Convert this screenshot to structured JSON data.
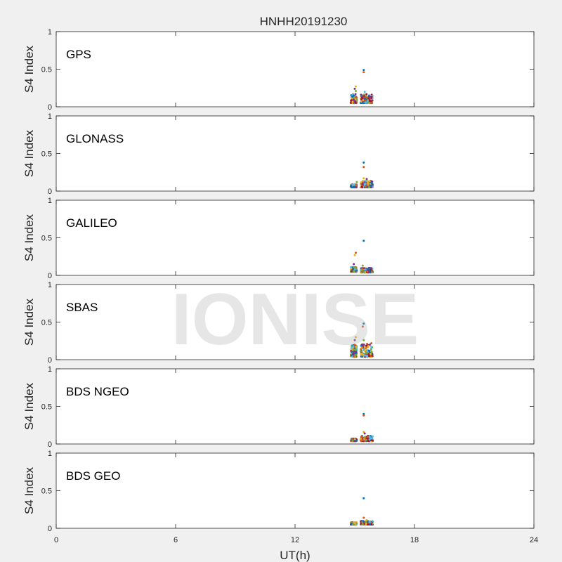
{
  "watermark": "IONISE",
  "chart_data": {
    "type": "scatter",
    "title": "HNHH20191230",
    "xlabel": "UT(h)",
    "ylabel": "S4 Index",
    "xlim": [
      0,
      24
    ],
    "ylim": [
      0,
      1
    ],
    "xticks": [
      0,
      6,
      12,
      18,
      24
    ],
    "yticks": [
      0,
      0.5,
      1
    ],
    "grid": false,
    "colors": [
      "#0072bd",
      "#d95319",
      "#edb120",
      "#7e2f8e",
      "#77ac30",
      "#4dbeee",
      "#a2142f"
    ],
    "panels": [
      {
        "name": "GPS",
        "clusters": [
          {
            "x": [
              14.8,
              15.1
            ],
            "y_min": 0.05,
            "y_max": 0.17
          },
          {
            "x": [
              15.3,
              15.9
            ],
            "y_min": 0.05,
            "y_max": 0.17
          }
        ],
        "outliers": [
          {
            "x": 15.45,
            "y": 0.49
          },
          {
            "x": 15.45,
            "y": 0.46
          },
          {
            "x": 15.05,
            "y": 0.27
          },
          {
            "x": 15.0,
            "y": 0.24
          },
          {
            "x": 15.05,
            "y": 0.21
          },
          {
            "x": 15.5,
            "y": 0.2
          }
        ]
      },
      {
        "name": "GLONASS",
        "clusters": [
          {
            "x": [
              14.8,
              15.1
            ],
            "y_min": 0.05,
            "y_max": 0.09
          },
          {
            "x": [
              15.3,
              15.9
            ],
            "y_min": 0.05,
            "y_max": 0.14
          }
        ],
        "outliers": [
          {
            "x": 15.45,
            "y": 0.38
          },
          {
            "x": 15.45,
            "y": 0.32
          },
          {
            "x": 15.45,
            "y": 0.17
          },
          {
            "x": 15.6,
            "y": 0.16
          },
          {
            "x": 15.1,
            "y": 0.12
          }
        ]
      },
      {
        "name": "GALILEO",
        "clusters": [
          {
            "x": [
              14.8,
              15.1
            ],
            "y_min": 0.05,
            "y_max": 0.11
          },
          {
            "x": [
              15.3,
              15.9
            ],
            "y_min": 0.04,
            "y_max": 0.1
          }
        ],
        "outliers": [
          {
            "x": 15.45,
            "y": 0.46
          },
          {
            "x": 15.05,
            "y": 0.3
          },
          {
            "x": 15.0,
            "y": 0.27
          },
          {
            "x": 14.95,
            "y": 0.15
          },
          {
            "x": 15.4,
            "y": 0.13
          }
        ]
      },
      {
        "name": "SBAS",
        "clusters": [
          {
            "x": [
              14.8,
              15.1
            ],
            "y_min": 0.04,
            "y_max": 0.2
          },
          {
            "x": [
              15.3,
              15.9
            ],
            "y_min": 0.04,
            "y_max": 0.22
          }
        ],
        "outliers": [
          {
            "x": 15.45,
            "y": 0.48
          },
          {
            "x": 15.4,
            "y": 0.44
          },
          {
            "x": 15.05,
            "y": 0.3
          },
          {
            "x": 15.0,
            "y": 0.26
          },
          {
            "x": 15.45,
            "y": 0.26
          }
        ]
      },
      {
        "name": "BDS NGEO",
        "clusters": [
          {
            "x": [
              14.8,
              15.1
            ],
            "y_min": 0.04,
            "y_max": 0.07
          },
          {
            "x": [
              15.3,
              15.9
            ],
            "y_min": 0.04,
            "y_max": 0.11
          }
        ],
        "outliers": [
          {
            "x": 15.45,
            "y": 0.4
          },
          {
            "x": 15.45,
            "y": 0.38
          },
          {
            "x": 15.45,
            "y": 0.16
          },
          {
            "x": 15.5,
            "y": 0.14
          }
        ]
      },
      {
        "name": "BDS GEO",
        "clusters": [
          {
            "x": [
              14.8,
              15.1
            ],
            "y_min": 0.05,
            "y_max": 0.08
          },
          {
            "x": [
              15.3,
              15.9
            ],
            "y_min": 0.05,
            "y_max": 0.1
          }
        ],
        "outliers": [
          {
            "x": 15.45,
            "y": 0.4
          },
          {
            "x": 15.45,
            "y": 0.14
          },
          {
            "x": 15.6,
            "y": 0.11
          }
        ]
      }
    ]
  }
}
